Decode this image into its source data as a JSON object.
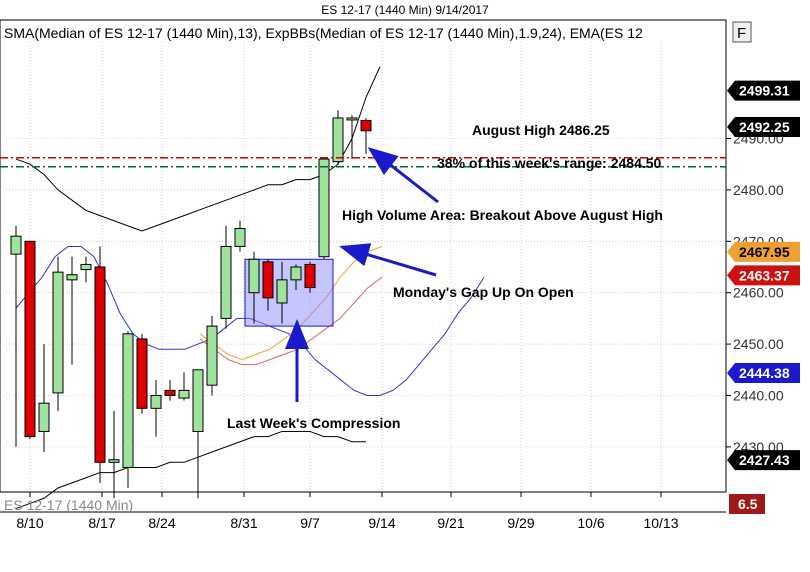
{
  "window": {
    "title": "ES 12-17 (1440 Min)  9/14/2017"
  },
  "indicator_label": "SMA(Median of ES 12-17 (1440 Min),13), ExpBBs(Median of ES 12-17 (1440 Min),1.9,24), EMA(ES 12",
  "f_button_label": "F",
  "watermark": "ES 12-17 (1440 Min)",
  "chart_data": {
    "type": "candlestick",
    "ylim": [
      2422,
      2508
    ],
    "y_ticks": [
      "2430.00",
      "2440.00",
      "2450.00",
      "2460.00",
      "2470.00",
      "2480.00",
      "2490.00"
    ],
    "x_ticks": [
      "8/10",
      "8/17",
      "8/24",
      "8/31",
      "9/7",
      "9/14",
      "9/21",
      "9/29",
      "10/6",
      "10/13"
    ],
    "candles": [
      {
        "open": 2467.5,
        "high": 2473.0,
        "low": 2430.0,
        "close": 2471.0
      },
      {
        "open": 2470.0,
        "high": 2470.0,
        "low": 2431.5,
        "close": 2432.0
      },
      {
        "open": 2433.0,
        "high": 2450.0,
        "low": 2429.0,
        "close": 2438.5
      },
      {
        "open": 2440.5,
        "high": 2467.0,
        "low": 2437.0,
        "close": 2464.0
      },
      {
        "open": 2462.5,
        "high": 2467.0,
        "low": 2446.0,
        "close": 2463.5
      },
      {
        "open": 2464.5,
        "high": 2467.0,
        "low": 2462.0,
        "close": 2465.5
      },
      {
        "open": 2465.0,
        "high": 2469.0,
        "low": 2423.0,
        "close": 2427.0
      },
      {
        "open": 2427.0,
        "high": 2437.0,
        "low": 2420.0,
        "close": 2427.5
      },
      {
        "open": 2426.0,
        "high": 2452.5,
        "low": 2422.0,
        "close": 2452.0
      },
      {
        "open": 2451.0,
        "high": 2452.0,
        "low": 2436.5,
        "close": 2437.5
      },
      {
        "open": 2437.5,
        "high": 2443.0,
        "low": 2432.0,
        "close": 2440.0
      },
      {
        "open": 2441.0,
        "high": 2443.0,
        "low": 2439.0,
        "close": 2440.0
      },
      {
        "open": 2439.5,
        "high": 2444.5,
        "low": 2439.0,
        "close": 2441.0
      },
      {
        "open": 2433.0,
        "high": 2445.0,
        "low": 2420.0,
        "close": 2445.0
      },
      {
        "open": 2442.0,
        "high": 2455.5,
        "low": 2440.0,
        "close": 2453.5
      },
      {
        "open": 2455.0,
        "high": 2473.0,
        "low": 2453.0,
        "close": 2469.0
      },
      {
        "open": 2469.0,
        "high": 2474.0,
        "low": 2468.0,
        "close": 2472.5
      },
      {
        "open": 2460.0,
        "high": 2468.0,
        "low": 2454.0,
        "close": 2466.5
      },
      {
        "open": 2466.0,
        "high": 2466.5,
        "low": 2456.5,
        "close": 2459.0
      },
      {
        "open": 2458.0,
        "high": 2466.0,
        "low": 2454.0,
        "close": 2462.5
      },
      {
        "open": 2462.5,
        "high": 2465.5,
        "low": 2460.5,
        "close": 2465.0
      },
      {
        "open": 2465.5,
        "high": 2466.0,
        "low": 2460.0,
        "close": 2461.0
      },
      {
        "open": 2467.0,
        "high": 2486.0,
        "low": 2466.5,
        "close": 2486.0
      },
      {
        "open": 2485.5,
        "high": 2495.5,
        "low": 2485.0,
        "close": 2494.0
      },
      {
        "open": 2494.0,
        "high": 2494.5,
        "low": 2486.0,
        "close": 2494.0
      },
      {
        "open": 2493.5,
        "high": 2494.0,
        "low": 2487.0,
        "close": 2491.5
      }
    ],
    "x_positions": [
      16,
      30,
      44,
      58,
      72,
      86,
      100,
      114,
      128,
      142,
      156,
      170,
      184,
      198,
      212,
      226,
      240,
      254,
      268,
      282,
      296,
      310,
      324,
      338,
      352,
      366
    ],
    "horizontal_lines": [
      {
        "value": 2486.25,
        "color": "#cc0000",
        "label": "August High 2486.25"
      },
      {
        "value": 2484.5,
        "color": "#006633",
        "label": "38% of this week's range: 2484.50"
      }
    ],
    "price_tags": [
      {
        "value": 2499.31,
        "label": "2499.31",
        "bg": "#000000",
        "fg": "#ffffff"
      },
      {
        "value": 2492.25,
        "label": "2492.25",
        "bg": "#000000",
        "fg": "#ffffff"
      },
      {
        "value": 2467.95,
        "label": "2467.95",
        "bg": "#f0a030",
        "fg": "#000000"
      },
      {
        "value": 2463.37,
        "label": "2463.37",
        "bg": "#cc1111",
        "fg": "#ffffff"
      },
      {
        "value": 2444.38,
        "label": "2444.38",
        "bg": "#1a1acc",
        "fg": "#ffffff"
      },
      {
        "value": 2427.43,
        "label": "2427.43",
        "bg": "#000000",
        "fg": "#ffffff"
      }
    ],
    "volume_tag": "6.5",
    "annotations": [
      "August High 2486.25",
      "38% of this week's range: 2484.50",
      "High Volume Area: Breakout Above August High",
      "Monday's Gap Up On Open",
      "Last Week's Compression"
    ],
    "upper_band": [
      2486,
      2485,
      2483,
      2480,
      2478,
      2476,
      2475,
      2474,
      2473,
      2472,
      2473,
      2474,
      2475,
      2476,
      2477,
      2478,
      2479,
      2480,
      2481,
      2481,
      2482,
      2482,
      2483,
      2485,
      2490,
      2498,
      2504
    ],
    "lower_band": [
      2418,
      2419,
      2420,
      2422,
      2423,
      2424,
      2425,
      2425,
      2426,
      2426,
      2426,
      2427,
      2427,
      2428,
      2429,
      2430,
      2431,
      2432,
      2432,
      2433,
      2433,
      2433,
      2432,
      2432,
      2431,
      2431
    ],
    "blue_line": [
      2457,
      2460,
      2463,
      2467,
      2469,
      2469,
      2467,
      2462,
      2456,
      2452,
      2450,
      2449,
      2449,
      2449,
      2450,
      2451,
      2453,
      2455,
      2455,
      2454,
      2453,
      2452,
      2450,
      2447,
      2445,
      2443,
      2441,
      2440,
      2440,
      2441,
      2443,
      2446,
      2449,
      2452,
      2456,
      2459,
      2463
    ],
    "orange_line": [
      2452,
      2450,
      2448,
      2447,
      2448,
      2449,
      2451,
      2453,
      2456,
      2459,
      2463,
      2466,
      2468,
      2469
    ],
    "red_line": [
      2451,
      2449,
      2447,
      2446,
      2446,
      2447,
      2448,
      2449,
      2451,
      2453,
      2455,
      2458,
      2461,
      2463
    ],
    "vertical_grid": true,
    "grid_color": "#b0b0b0",
    "compression_box": {
      "x0": 17,
      "x1": 22,
      "y0": 2453.5,
      "y1": 2466.5
    }
  }
}
